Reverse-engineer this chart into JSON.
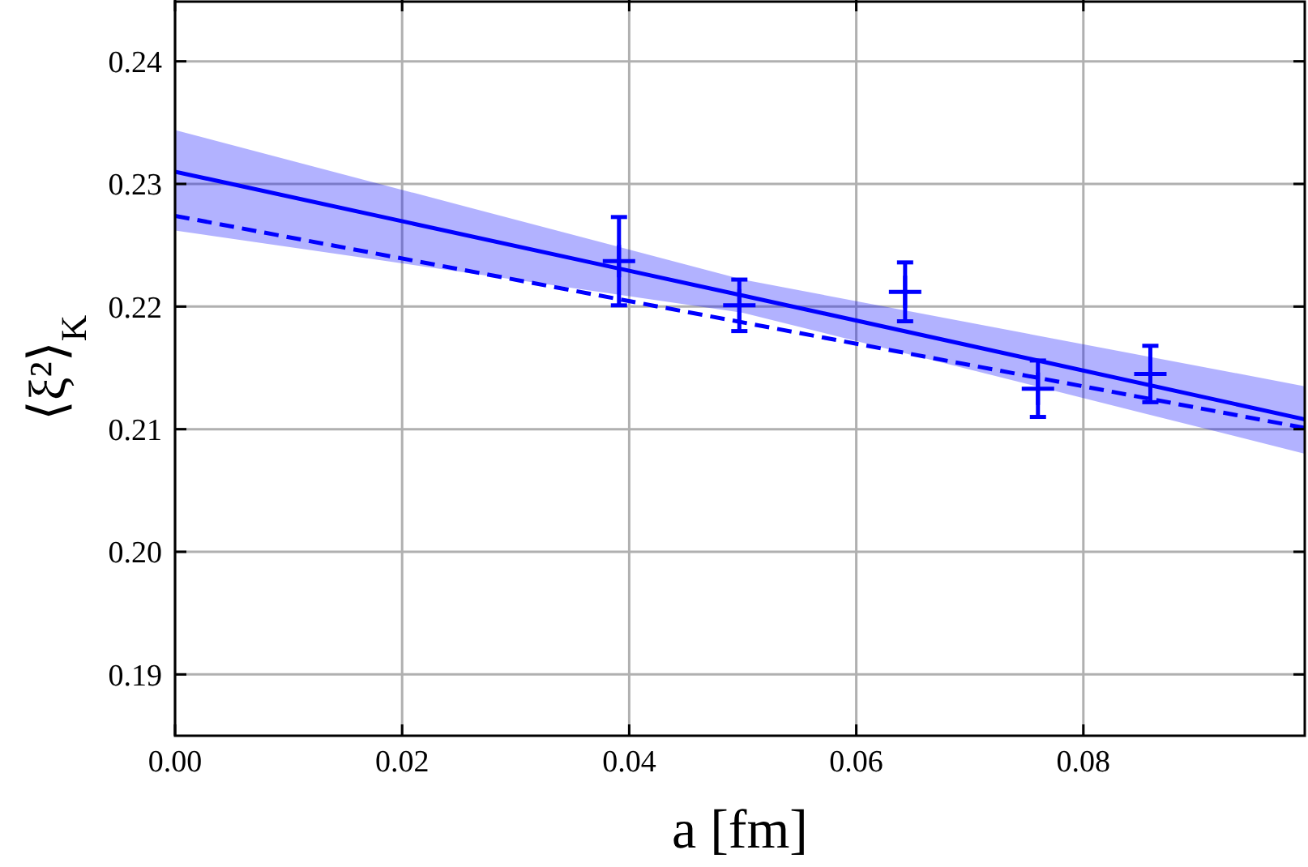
{
  "chart_data": {
    "type": "scatter",
    "xlabel": "a [fm]",
    "ylabel": "⟨ξ²⟩$_{K}$",
    "xlim": [
      0,
      0.0995
    ],
    "ylim": [
      0.185,
      0.245
    ],
    "xticks": [
      {
        "value": 0,
        "label": "0.00"
      },
      {
        "value": 0.02,
        "label": "0.02"
      },
      {
        "value": 0.04,
        "label": "0.04"
      },
      {
        "value": 0.06,
        "label": "0.06"
      },
      {
        "value": 0.08,
        "label": "0.08"
      }
    ],
    "yticks": [
      {
        "value": 0.19,
        "label": "0.19"
      },
      {
        "value": 0.2,
        "label": "0.20"
      },
      {
        "value": 0.21,
        "label": "0.21"
      },
      {
        "value": 0.22,
        "label": "0.22"
      },
      {
        "value": 0.23,
        "label": "0.23"
      },
      {
        "value": 0.24,
        "label": "0.24"
      }
    ],
    "grid": true,
    "series": [
      {
        "type": "line",
        "color": "#0000ff",
        "line_style": "solid",
        "x": [
          0,
          0.05,
          0.0995
        ],
        "values": [
          0.231,
          0.2209,
          0.2108
        ],
        "lower": [
          0.2262,
          0.2195,
          0.208
        ],
        "upper": [
          0.2344,
          0.2222,
          0.2135
        ]
      },
      {
        "type": "line",
        "color": "#0000ff",
        "line_style": "dashed",
        "x": [
          0,
          0.0995
        ],
        "values": [
          0.2274,
          0.2101
        ]
      },
      {
        "color": "#0000ff",
        "marker": "cross",
        "x": [
          0.0391,
          0.0497,
          0.0643,
          0.076,
          0.0859
        ],
        "values": [
          0.2237,
          0.2201,
          0.2212,
          0.2133,
          0.2145
        ],
        "errors": [
          0.0036,
          0.0021,
          0.0024,
          0.0023,
          0.0023
        ]
      }
    ]
  }
}
